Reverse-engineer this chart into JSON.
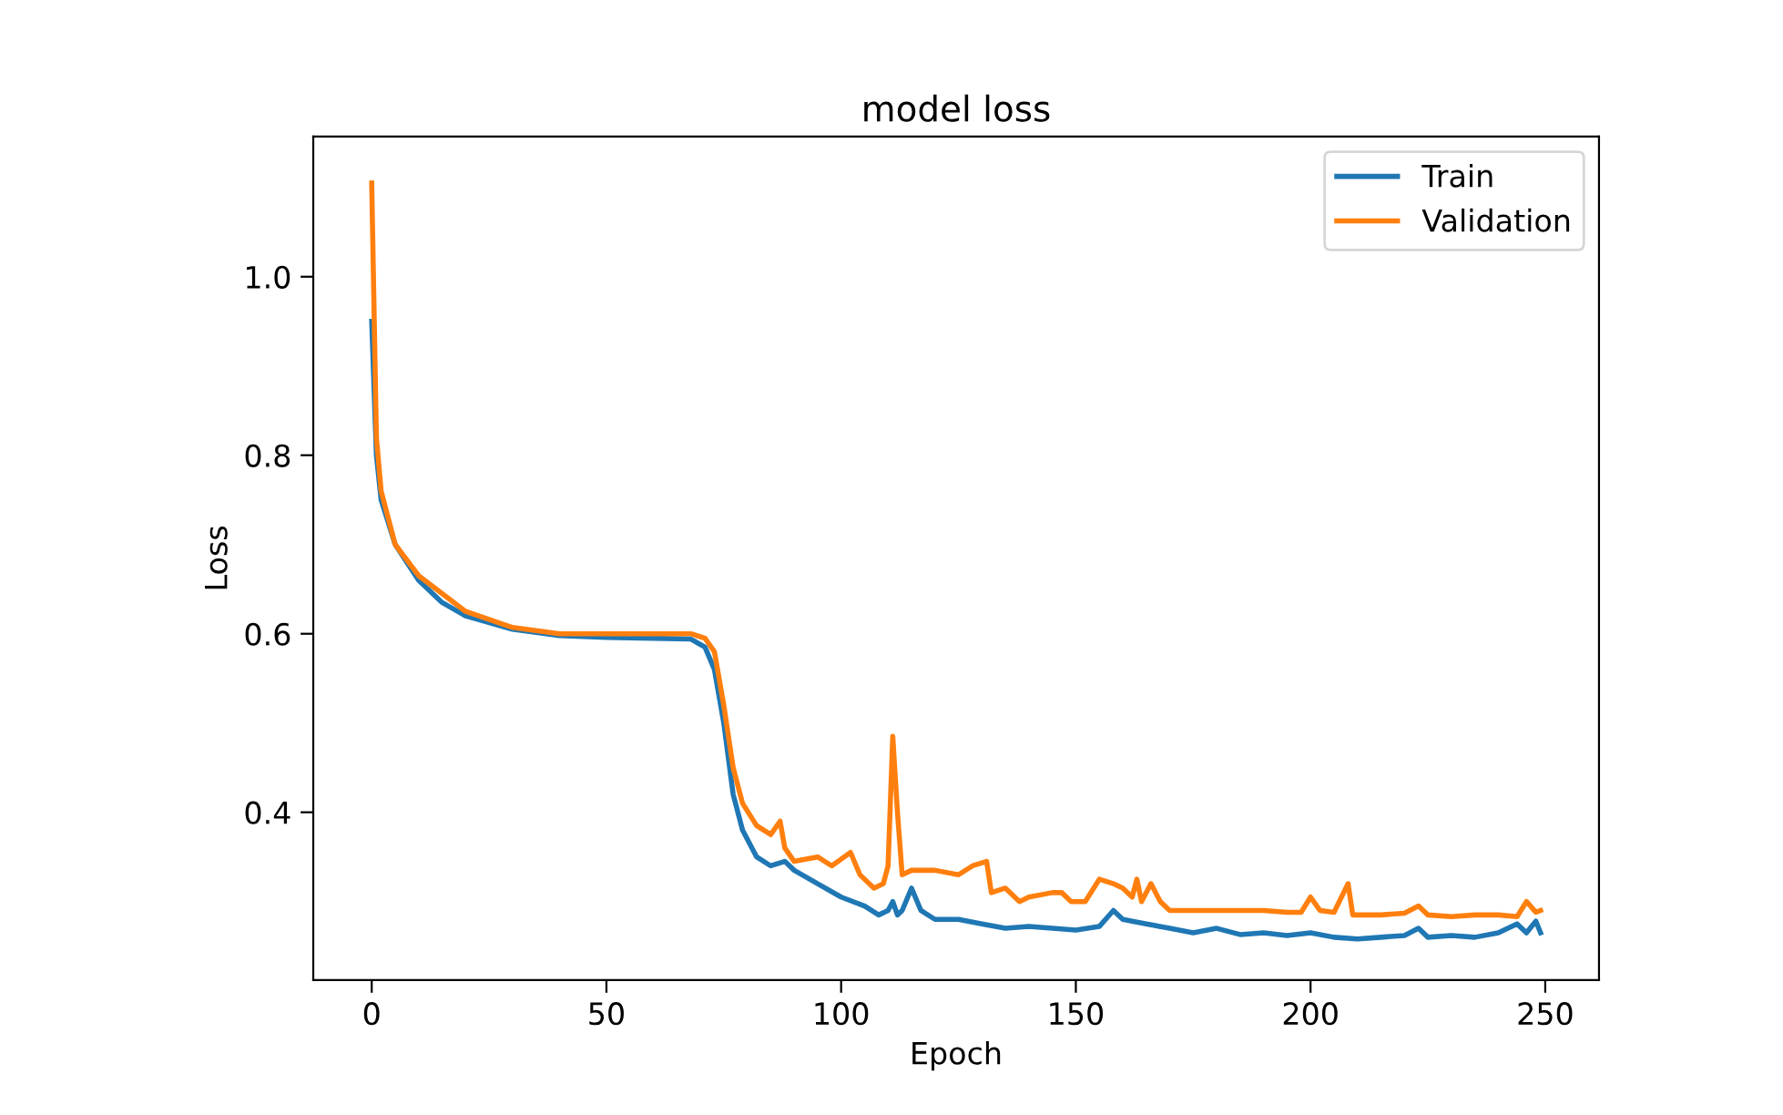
{
  "chart_data": {
    "type": "line",
    "title": "model loss",
    "xlabel": "Epoch",
    "ylabel": "Loss",
    "xlim": [
      -12.45,
      261.45
    ],
    "ylim": [
      0.212,
      1.157
    ],
    "xticks": [
      0,
      50,
      100,
      150,
      200,
      250
    ],
    "yticks": [
      0.4,
      0.6,
      0.8,
      {
        "value": 1,
        "label": "1.0"
      }
    ],
    "legend": "top right",
    "grid": false,
    "series": [
      {
        "name": "Train",
        "color": "#1f77b4",
        "x": [
          0,
          1,
          2,
          5,
          10,
          15,
          20,
          30,
          40,
          50,
          60,
          68,
          71,
          73,
          75,
          77,
          79,
          82,
          85,
          88,
          90,
          95,
          100,
          105,
          108,
          110,
          111,
          112,
          113,
          115,
          117,
          120,
          125,
          130,
          135,
          140,
          145,
          150,
          155,
          158,
          160,
          165,
          170,
          175,
          180,
          185,
          190,
          195,
          200,
          205,
          210,
          215,
          220,
          223,
          225,
          230,
          235,
          240,
          244,
          246,
          248,
          249
        ],
        "values": [
          0.95,
          0.8,
          0.75,
          0.7,
          0.66,
          0.635,
          0.62,
          0.605,
          0.598,
          0.596,
          0.595,
          0.594,
          0.585,
          0.56,
          0.5,
          0.42,
          0.38,
          0.35,
          0.34,
          0.345,
          0.335,
          0.32,
          0.305,
          0.295,
          0.285,
          0.29,
          0.3,
          0.285,
          0.29,
          0.315,
          0.29,
          0.28,
          0.28,
          0.275,
          0.27,
          0.272,
          0.27,
          0.268,
          0.272,
          0.29,
          0.28,
          0.275,
          0.27,
          0.265,
          0.27,
          0.263,
          0.265,
          0.262,
          0.265,
          0.26,
          0.258,
          0.26,
          0.262,
          0.27,
          0.26,
          0.262,
          0.26,
          0.265,
          0.275,
          0.265,
          0.278,
          0.265
        ]
      },
      {
        "name": "Validation",
        "color": "#ff7f0e",
        "x": [
          0,
          1,
          2,
          5,
          10,
          20,
          30,
          40,
          50,
          60,
          68,
          71,
          73,
          75,
          77,
          79,
          82,
          85,
          87,
          88,
          90,
          95,
          98,
          102,
          104,
          107,
          109,
          110,
          111,
          112,
          113,
          115,
          120,
          125,
          128,
          131,
          132,
          135,
          138,
          140,
          145,
          147,
          149,
          152,
          155,
          158,
          160,
          162,
          163,
          164,
          166,
          168,
          170,
          175,
          180,
          185,
          190,
          195,
          198,
          200,
          202,
          205,
          208,
          209,
          215,
          220,
          223,
          225,
          230,
          235,
          240,
          244,
          246,
          248,
          249
        ],
        "values": [
          1.105,
          0.82,
          0.76,
          0.7,
          0.665,
          0.625,
          0.607,
          0.6,
          0.6,
          0.6,
          0.6,
          0.595,
          0.58,
          0.52,
          0.45,
          0.41,
          0.385,
          0.375,
          0.39,
          0.36,
          0.345,
          0.35,
          0.34,
          0.355,
          0.33,
          0.315,
          0.32,
          0.34,
          0.485,
          0.4,
          0.33,
          0.335,
          0.335,
          0.33,
          0.34,
          0.345,
          0.31,
          0.315,
          0.3,
          0.305,
          0.31,
          0.31,
          0.3,
          0.3,
          0.325,
          0.32,
          0.315,
          0.305,
          0.325,
          0.3,
          0.32,
          0.3,
          0.29,
          0.29,
          0.29,
          0.29,
          0.29,
          0.288,
          0.288,
          0.305,
          0.29,
          0.288,
          0.32,
          0.285,
          0.285,
          0.287,
          0.295,
          0.285,
          0.283,
          0.285,
          0.285,
          0.283,
          0.3,
          0.288,
          0.29
        ]
      }
    ]
  }
}
